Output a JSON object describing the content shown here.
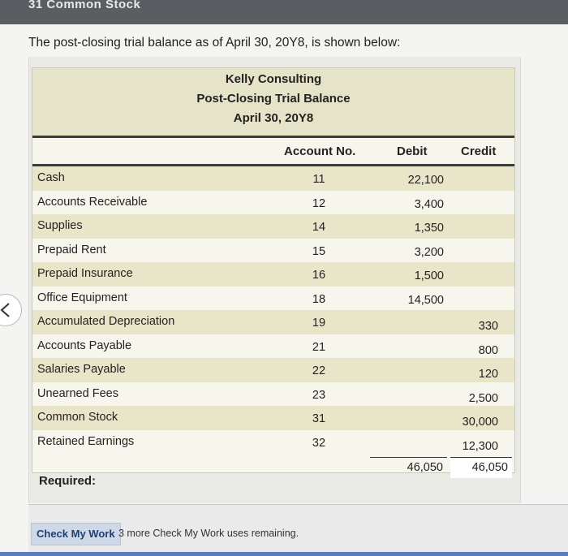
{
  "top_title": "31 Common Stock",
  "intro_text": "The post-closing trial balance as of April 30, 20Y8, is shown below:",
  "trial_balance": {
    "company": "Kelly Consulting",
    "title": "Post-Closing Trial Balance",
    "date": "April 30, 20Y8",
    "columns": {
      "account_no": "Account No.",
      "debit": "Debit",
      "credit": "Credit"
    },
    "rows": [
      {
        "name": "Cash",
        "no": "11",
        "debit": "22,100",
        "credit": ""
      },
      {
        "name": "Accounts Receivable",
        "no": "12",
        "debit": "3,400",
        "credit": ""
      },
      {
        "name": "Supplies",
        "no": "14",
        "debit": "1,350",
        "credit": ""
      },
      {
        "name": "Prepaid Rent",
        "no": "15",
        "debit": "3,200",
        "credit": ""
      },
      {
        "name": "Prepaid Insurance",
        "no": "16",
        "debit": "1,500",
        "credit": ""
      },
      {
        "name": "Office Equipment",
        "no": "18",
        "debit": "14,500",
        "credit": ""
      },
      {
        "name": "Accumulated Depreciation",
        "no": "19",
        "debit": "",
        "credit": "330"
      },
      {
        "name": "Accounts Payable",
        "no": "21",
        "debit": "",
        "credit": "800"
      },
      {
        "name": "Salaries Payable",
        "no": "22",
        "debit": "",
        "credit": "120"
      },
      {
        "name": "Unearned Fees",
        "no": "23",
        "debit": "",
        "credit": "2,500"
      },
      {
        "name": "Common Stock",
        "no": "31",
        "debit": "",
        "credit": "30,000"
      },
      {
        "name": "Retained Earnings",
        "no": "32",
        "debit": "",
        "credit": "12,300"
      }
    ],
    "total_debit": "46,050",
    "total_credit": "46,050"
  },
  "required_label": "Required:",
  "check_button": "Check My Work",
  "remaining_text": "3 more Check My Work uses remaining."
}
